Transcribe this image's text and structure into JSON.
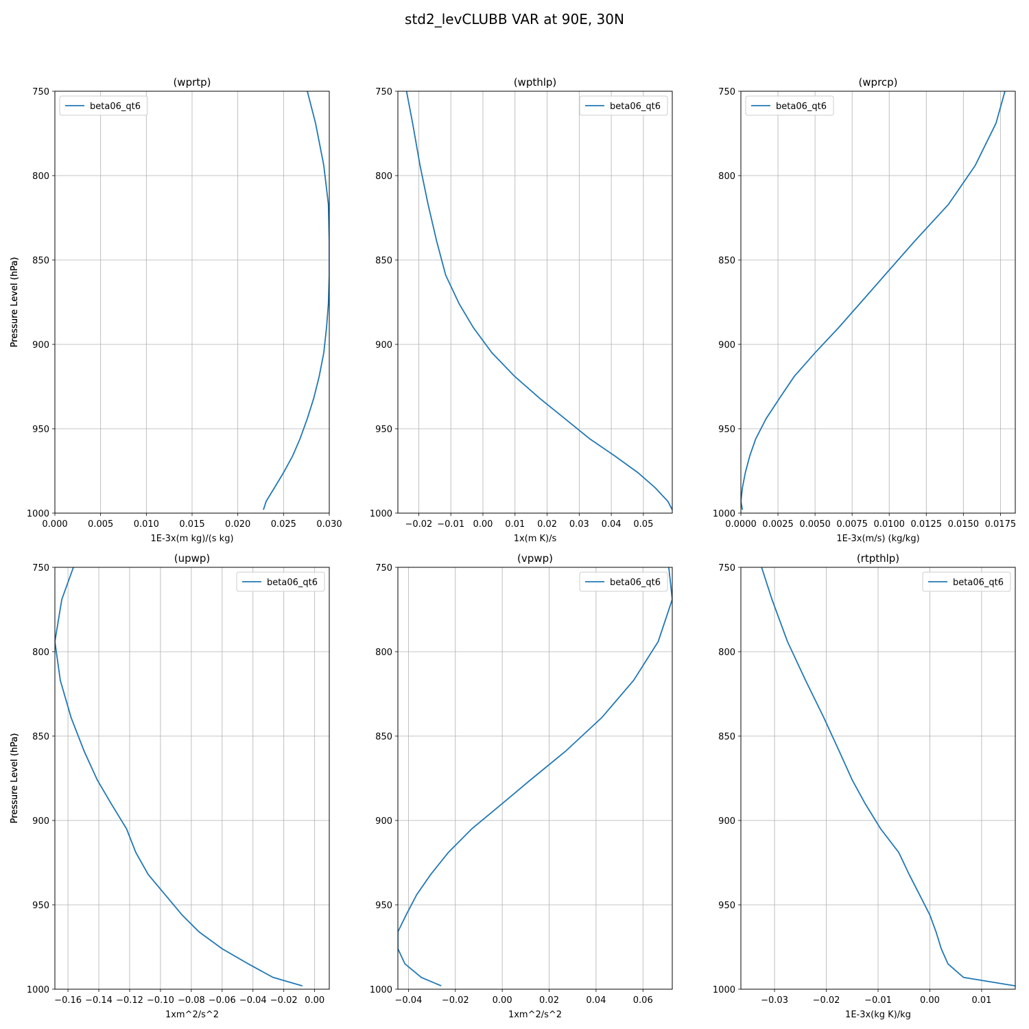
{
  "figure": {
    "title": "std2_levCLUBB VAR at 90E, 30N"
  },
  "colors": {
    "line": "#1f77b4",
    "grid": "#b0b0b0",
    "axis": "#000000"
  },
  "chart_data": [
    {
      "type": "line",
      "title": "(wprtp)",
      "xlabel": "1E-3x(m kg)/(s kg)",
      "ylabel": "Pressure Level (hPa)",
      "xlim": [
        0.0,
        0.03
      ],
      "ylim": [
        1000,
        750
      ],
      "xticks": [
        0.0,
        0.005,
        0.01,
        0.015,
        0.02,
        0.025,
        0.03
      ],
      "xtick_labels": [
        "0.000",
        "0.005",
        "0.010",
        "0.015",
        "0.020",
        "0.025",
        "0.030"
      ],
      "yticks": [
        750,
        800,
        850,
        900,
        950,
        1000
      ],
      "ytick_labels": [
        "750",
        "800",
        "850",
        "900",
        "950",
        "1000"
      ],
      "grid": true,
      "legend": "upper-left",
      "series": [
        {
          "name": "beta06_qt6",
          "x": [
            0.0276,
            0.0285,
            0.0294,
            0.0299,
            0.03,
            0.03,
            0.0299,
            0.0297,
            0.0294,
            0.0289,
            0.0283,
            0.0276,
            0.0268,
            0.026,
            0.025,
            0.024,
            0.0231,
            0.0228
          ],
          "y": [
            750,
            769,
            794,
            817,
            839,
            859,
            876,
            890,
            905,
            919,
            932,
            944,
            956,
            966,
            976,
            985,
            993,
            998
          ]
        }
      ]
    },
    {
      "type": "line",
      "title": "(wpthlp)",
      "xlabel": "1x(m K)/s",
      "ylabel": "Pressure Level (hPa)",
      "xlim": [
        -0.0265,
        0.059
      ],
      "ylim": [
        1000,
        750
      ],
      "xticks": [
        -0.02,
        -0.01,
        0.0,
        0.01,
        0.02,
        0.03,
        0.04,
        0.05
      ],
      "xtick_labels": [
        "−0.02",
        "−0.01",
        "0.00",
        "0.01",
        "0.02",
        "0.03",
        "0.04",
        "0.05"
      ],
      "yticks": [
        750,
        800,
        850,
        900,
        950,
        1000
      ],
      "ytick_labels": [
        "750",
        "800",
        "850",
        "900",
        "950",
        "1000"
      ],
      "grid": true,
      "legend": "upper-right",
      "series": [
        {
          "name": "beta06_qt6",
          "x": [
            -0.0238,
            -0.0219,
            -0.0196,
            -0.0171,
            -0.0144,
            -0.0116,
            -0.0074,
            -0.003,
            0.0028,
            0.0099,
            0.0177,
            0.0255,
            0.0333,
            0.041,
            0.0483,
            0.0537,
            0.0576,
            0.059
          ],
          "y": [
            750,
            769,
            794,
            817,
            839,
            859,
            876,
            890,
            905,
            919,
            932,
            944,
            956,
            966,
            976,
            985,
            993,
            998
          ]
        }
      ]
    },
    {
      "type": "line",
      "title": "(wprcp)",
      "xlabel": "1E-3x(m/s) (kg/kg)",
      "ylabel": "Pressure Level (hPa)",
      "xlim": [
        0.0,
        0.0185
      ],
      "ylim": [
        1000,
        750
      ],
      "xticks": [
        0.0,
        0.0025,
        0.005,
        0.0075,
        0.01,
        0.0125,
        0.015,
        0.0175
      ],
      "xtick_labels": [
        "0.0000",
        "0.0025",
        "0.0050",
        "0.0075",
        "0.0100",
        "0.0125",
        "0.0150",
        "0.0175"
      ],
      "yticks": [
        750,
        800,
        850,
        900,
        950,
        1000
      ],
      "ytick_labels": [
        "750",
        "800",
        "850",
        "900",
        "950",
        "1000"
      ],
      "grid": true,
      "legend": "upper-left",
      "series": [
        {
          "name": "beta06_qt6",
          "x": [
            0.0178,
            0.0172,
            0.0158,
            0.014,
            0.0117,
            0.0097,
            0.008,
            0.0066,
            0.005,
            0.0036,
            0.0026,
            0.0017,
            0.001,
            0.0006,
            0.0003,
            0.0001,
            0.0,
            0.0001
          ],
          "y": [
            750,
            769,
            794,
            817,
            839,
            859,
            876,
            890,
            905,
            919,
            932,
            944,
            956,
            966,
            976,
            985,
            993,
            998
          ]
        }
      ]
    },
    {
      "type": "line",
      "title": "(upwp)",
      "xlabel": "1xm^2/s^2",
      "ylabel": "Pressure Level (hPa)",
      "xlim": [
        -0.1685,
        0.0095
      ],
      "ylim": [
        1000,
        750
      ],
      "xticks": [
        -0.16,
        -0.14,
        -0.12,
        -0.1,
        -0.08,
        -0.06,
        -0.04,
        -0.02,
        0.0
      ],
      "xtick_labels": [
        "−0.16",
        "−0.14",
        "−0.12",
        "−0.10",
        "−0.08",
        "−0.06",
        "−0.04",
        "−0.02",
        "0.00"
      ],
      "yticks": [
        750,
        800,
        850,
        900,
        950,
        1000
      ],
      "ytick_labels": [
        "750",
        "800",
        "850",
        "900",
        "950",
        "1000"
      ],
      "grid": true,
      "legend": "upper-right",
      "series": [
        {
          "name": "beta06_qt6",
          "x": [
            -0.1565,
            -0.164,
            -0.1685,
            -0.165,
            -0.158,
            -0.1495,
            -0.141,
            -0.132,
            -0.122,
            -0.116,
            -0.108,
            -0.097,
            -0.086,
            -0.075,
            -0.06,
            -0.043,
            -0.027,
            -0.008
          ],
          "y": [
            750,
            769,
            794,
            817,
            839,
            859,
            876,
            890,
            905,
            919,
            932,
            944,
            956,
            966,
            976,
            985,
            993,
            998
          ]
        }
      ]
    },
    {
      "type": "line",
      "title": "(vpwp)",
      "xlabel": "1xm^2/s^2",
      "ylabel": "Pressure Level (hPa)",
      "xlim": [
        -0.0445,
        0.0725
      ],
      "ylim": [
        1000,
        750
      ],
      "xticks": [
        -0.04,
        -0.02,
        0.0,
        0.02,
        0.04,
        0.06
      ],
      "xtick_labels": [
        "−0.04",
        "−0.02",
        "0.00",
        "0.02",
        "0.04",
        "0.06"
      ],
      "yticks": [
        750,
        800,
        850,
        900,
        950,
        1000
      ],
      "ytick_labels": [
        "750",
        "800",
        "850",
        "900",
        "950",
        "1000"
      ],
      "grid": true,
      "legend": "upper-right",
      "series": [
        {
          "name": "beta06_qt6",
          "x": [
            0.071,
            0.0725,
            0.0665,
            0.056,
            0.0425,
            0.027,
            0.012,
            0.0,
            -0.013,
            -0.023,
            -0.0305,
            -0.0365,
            -0.041,
            -0.0445,
            -0.0445,
            -0.0415,
            -0.0345,
            -0.026
          ],
          "y": [
            750,
            769,
            794,
            817,
            839,
            859,
            876,
            890,
            905,
            919,
            932,
            944,
            956,
            966,
            976,
            985,
            993,
            998
          ]
        }
      ]
    },
    {
      "type": "line",
      "title": "(rtpthlp)",
      "xlabel": "1E-3x(kg K)/kg",
      "ylabel": "Pressure Level (hPa)",
      "xlim": [
        -0.0365,
        0.0165
      ],
      "ylim": [
        1000,
        750
      ],
      "xticks": [
        -0.03,
        -0.02,
        -0.01,
        0.0,
        0.01
      ],
      "xtick_labels": [
        "−0.03",
        "−0.02",
        "−0.01",
        "0.00",
        "0.01"
      ],
      "yticks": [
        750,
        800,
        850,
        900,
        950,
        1000
      ],
      "ytick_labels": [
        "750",
        "800",
        "850",
        "900",
        "950",
        "1000"
      ],
      "grid": true,
      "legend": "upper-right",
      "series": [
        {
          "name": "beta06_qt6",
          "x": [
            -0.0325,
            -0.0305,
            -0.0275,
            -0.024,
            -0.0205,
            -0.0175,
            -0.015,
            -0.0125,
            -0.0095,
            -0.006,
            -0.004,
            -0.002,
            0.0,
            0.0012,
            0.0022,
            0.0035,
            0.0065,
            0.0165
          ],
          "y": [
            750,
            769,
            794,
            817,
            839,
            859,
            876,
            890,
            905,
            919,
            932,
            944,
            956,
            966,
            976,
            985,
            993,
            998
          ]
        }
      ]
    }
  ]
}
